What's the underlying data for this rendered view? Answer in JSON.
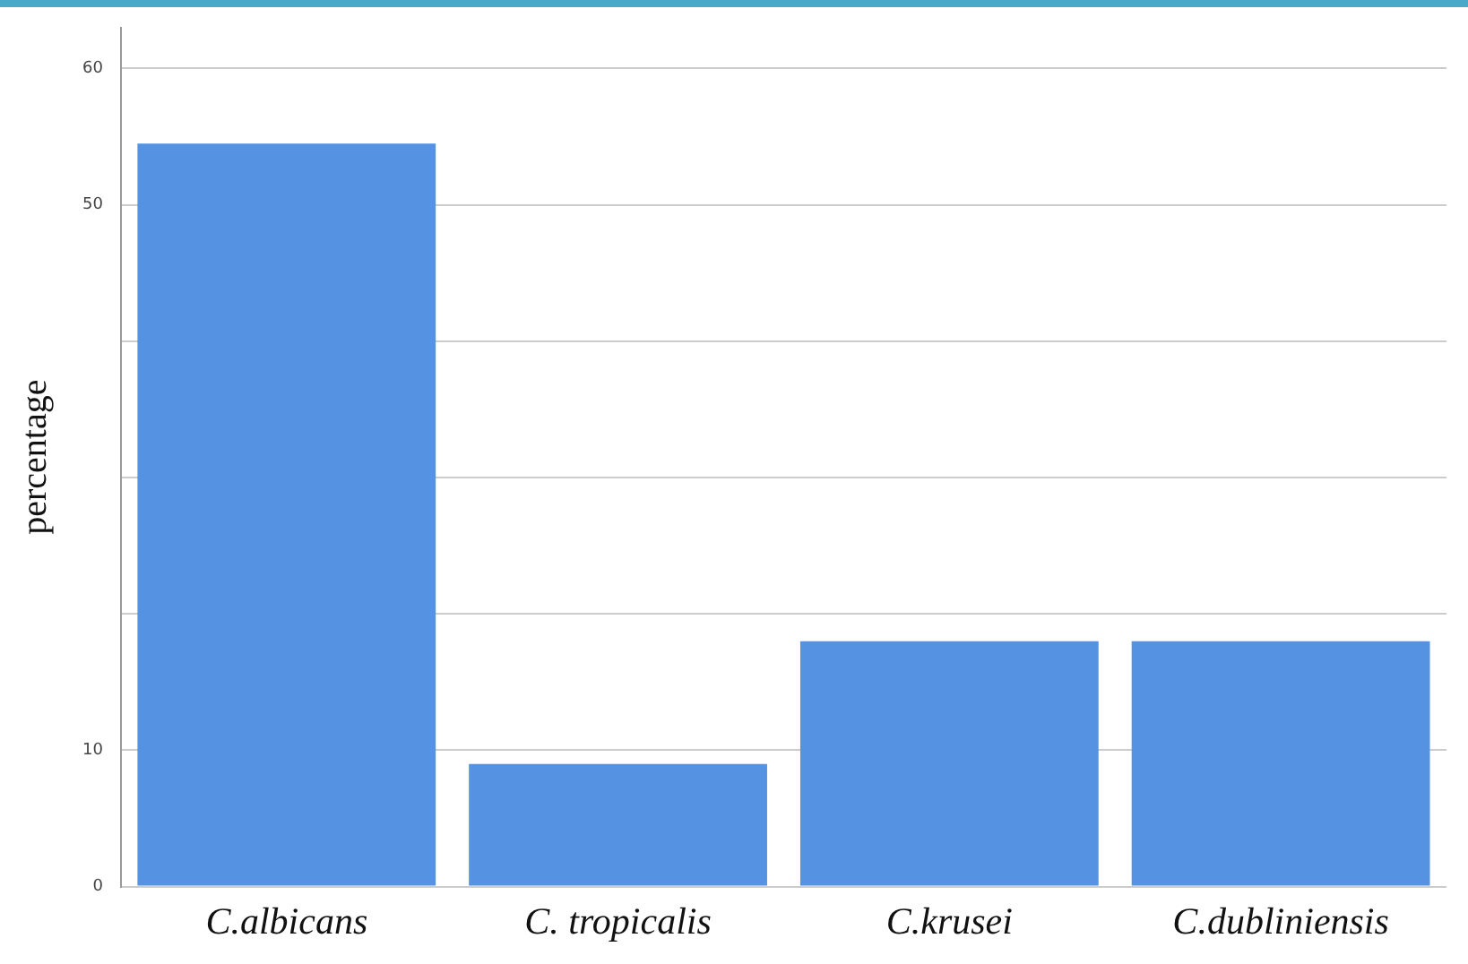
{
  "chart_data": {
    "type": "bar",
    "ylabel": "percentage",
    "categories": [
      "C.albicans",
      "C. tropicalis",
      "C.krusei",
      "C.dubliniensis"
    ],
    "values": [
      54.5,
      9,
      18,
      18
    ],
    "color": "#5593e2",
    "ylim": [
      0,
      63
    ],
    "yticks": [
      0,
      10,
      {
        "value": 20,
        "label": null
      },
      {
        "value": 30,
        "label": null
      },
      {
        "value": 40,
        "label": null
      },
      50,
      60
    ],
    "grid": "y"
  }
}
